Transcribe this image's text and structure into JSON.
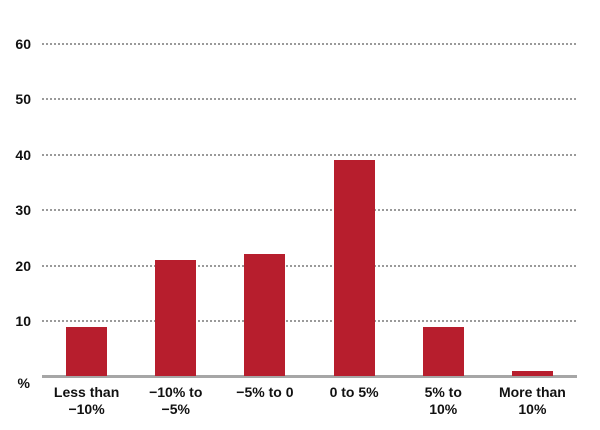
{
  "chart_data": {
    "type": "bar",
    "title": "",
    "categories": [
      "Less than\n−10%",
      "−10% to\n−5%",
      "−5% to 0",
      "0 to 5%",
      "5% to\n10%",
      "More than\n10%"
    ],
    "values": [
      9,
      21,
      22,
      39,
      9,
      1
    ],
    "xlabel": "",
    "ylabel": "%",
    "ylim": [
      0,
      60
    ],
    "yticks": [
      10,
      20,
      30,
      40,
      50,
      60
    ],
    "grid": "horizontal-dotted",
    "legend": "none",
    "bar_color": "#b71e2d",
    "axis_line_color": "#a6a6a6",
    "grid_color": "#9a9a9a",
    "tick_label_color": "#111111"
  }
}
